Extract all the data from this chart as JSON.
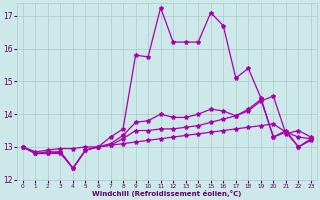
{
  "xlabel": "Windchill (Refroidissement éolien,°C)",
  "bg_color": "#cce8e8",
  "grid_color": "#aacccc",
  "line_color": "#aa00aa",
  "xlim": [
    -0.5,
    23.5
  ],
  "ylim": [
    12,
    17.4
  ],
  "yticks": [
    12,
    13,
    14,
    15,
    16,
    17
  ],
  "xticks": [
    0,
    1,
    2,
    3,
    4,
    5,
    6,
    7,
    8,
    9,
    10,
    11,
    12,
    13,
    14,
    15,
    16,
    17,
    18,
    19,
    20,
    21,
    22,
    23
  ],
  "series": [
    {
      "x": [
        0,
        1,
        2,
        3,
        4,
        5,
        6,
        7,
        8,
        9,
        10,
        11,
        12,
        13,
        14,
        15,
        16,
        17,
        18,
        19,
        20,
        21,
        22,
        23
      ],
      "y": [
        13.0,
        12.8,
        12.8,
        12.8,
        12.35,
        12.9,
        13.0,
        13.3,
        13.55,
        15.8,
        15.75,
        17.25,
        16.2,
        16.2,
        16.2,
        17.1,
        16.7,
        15.1,
        15.4,
        14.5,
        13.3,
        13.45,
        13.0,
        13.2
      ]
    },
    {
      "x": [
        0,
        1,
        2,
        3,
        4,
        5,
        6,
        7,
        8,
        9,
        10,
        11,
        12,
        13,
        14,
        15,
        16,
        17,
        18,
        19,
        20,
        21,
        22,
        23
      ],
      "y": [
        13.0,
        12.85,
        12.9,
        12.95,
        12.95,
        13.0,
        13.0,
        13.05,
        13.1,
        13.15,
        13.2,
        13.25,
        13.3,
        13.35,
        13.4,
        13.45,
        13.5,
        13.55,
        13.6,
        13.65,
        13.7,
        13.45,
        13.3,
        13.25
      ]
    },
    {
      "x": [
        0,
        1,
        2,
        3,
        4,
        5,
        6,
        7,
        8,
        9,
        10,
        11,
        12,
        13,
        14,
        15,
        16,
        17,
        18,
        19,
        20,
        21,
        22,
        23
      ],
      "y": [
        13.0,
        12.8,
        12.85,
        12.85,
        12.35,
        12.9,
        13.0,
        13.05,
        13.25,
        13.5,
        13.5,
        13.55,
        13.55,
        13.6,
        13.65,
        13.75,
        13.85,
        13.95,
        14.1,
        14.4,
        14.55,
        13.4,
        13.5,
        13.3
      ]
    },
    {
      "x": [
        0,
        1,
        2,
        3,
        4,
        5,
        6,
        7,
        8,
        9,
        10,
        11,
        12,
        13,
        14,
        15,
        16,
        17,
        18,
        19,
        20,
        21,
        22,
        23
      ],
      "y": [
        13.0,
        12.8,
        12.8,
        12.85,
        12.35,
        12.9,
        13.0,
        13.1,
        13.35,
        13.75,
        13.8,
        14.0,
        13.9,
        13.9,
        14.0,
        14.15,
        14.1,
        13.95,
        14.15,
        14.45,
        13.3,
        13.5,
        13.0,
        13.25
      ]
    }
  ]
}
